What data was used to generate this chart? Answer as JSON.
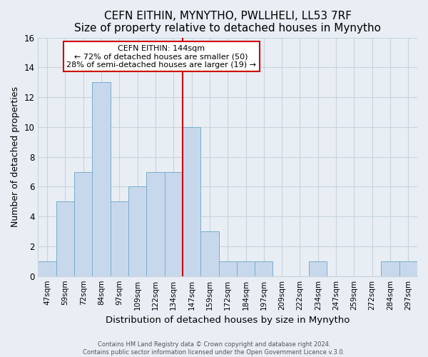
{
  "title": "CEFN EITHIN, MYNYTHO, PWLLHELI, LL53 7RF",
  "subtitle": "Size of property relative to detached houses in Mynytho",
  "xlabel": "Distribution of detached houses by size in Mynytho",
  "ylabel": "Number of detached properties",
  "bin_labels": [
    "47sqm",
    "59sqm",
    "72sqm",
    "84sqm",
    "97sqm",
    "109sqm",
    "122sqm",
    "134sqm",
    "147sqm",
    "159sqm",
    "172sqm",
    "184sqm",
    "197sqm",
    "209sqm",
    "222sqm",
    "234sqm",
    "247sqm",
    "259sqm",
    "272sqm",
    "284sqm",
    "297sqm"
  ],
  "bar_heights": [
    1,
    5,
    7,
    13,
    5,
    6,
    7,
    7,
    10,
    3,
    1,
    1,
    1,
    0,
    0,
    1,
    0,
    0,
    0,
    1,
    1
  ],
  "bar_color": "#c8d8ec",
  "bar_edge_color": "#7aaccc",
  "vline_color": "#cc0000",
  "annotation_title": "CEFN EITHIN: 144sqm",
  "annotation_line1": "← 72% of detached houses are smaller (50)",
  "annotation_line2": "28% of semi-detached houses are larger (19) →",
  "annotation_box_color": "#ffffff",
  "annotation_box_edge": "#cc0000",
  "ylim": [
    0,
    16
  ],
  "yticks": [
    0,
    2,
    4,
    6,
    8,
    10,
    12,
    14,
    16
  ],
  "footer1": "Contains HM Land Registry data © Crown copyright and database right 2024.",
  "footer2": "Contains public sector information licensed under the Open Government Licence v.3.0.",
  "bg_color": "#e8eef4",
  "plot_bg_color": "#e8eef4",
  "grid_color": "#c8d4de",
  "title_fontsize": 11,
  "subtitle_fontsize": 9.5
}
